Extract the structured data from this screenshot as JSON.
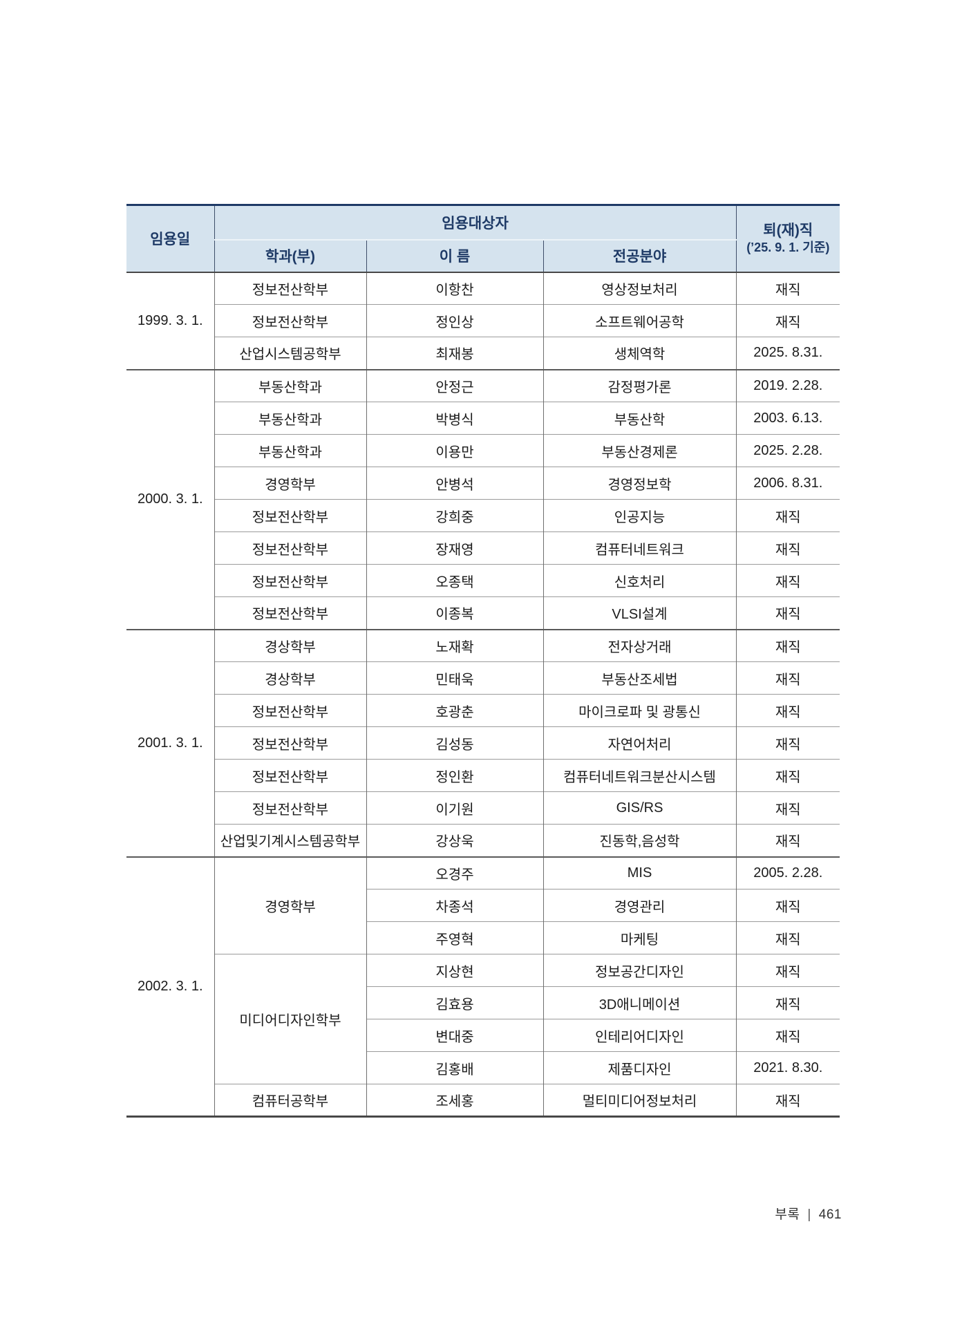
{
  "page": {
    "footer": {
      "section": "부록",
      "separator": "|",
      "page_number": "461"
    }
  },
  "colors": {
    "header_bg": "#d5e3ee",
    "header_text": "#1e3a66",
    "top_border": "#1e3a66"
  },
  "table": {
    "header": {
      "col_date": "임용일",
      "col_group": "임용대상자",
      "col_dept": "학과(부)",
      "col_name": "이 름",
      "col_major": "전공분야",
      "col_status_line1": "퇴(재)직",
      "col_status_line2": "(’25. 9. 1. 기준)"
    },
    "groups": [
      {
        "date": "1999. 3. 1.",
        "rows": [
          {
            "dept": "정보전산학부",
            "dept_span": 1,
            "name": "이항찬",
            "major": "영상정보처리",
            "status": "재직"
          },
          {
            "dept": "정보전산학부",
            "dept_span": 1,
            "name": "정인상",
            "major": "소프트웨어공학",
            "status": "재직"
          },
          {
            "dept": "산업시스템공학부",
            "dept_span": 1,
            "name": "최재봉",
            "major": "생체역학",
            "status": "2025. 8.31."
          }
        ]
      },
      {
        "date": "2000. 3. 1.",
        "rows": [
          {
            "dept": "부동산학과",
            "dept_span": 1,
            "name": "안정근",
            "major": "감정평가론",
            "status": "2019. 2.28."
          },
          {
            "dept": "부동산학과",
            "dept_span": 1,
            "name": "박병식",
            "major": "부동산학",
            "status": "2003. 6.13."
          },
          {
            "dept": "부동산학과",
            "dept_span": 1,
            "name": "이용만",
            "major": "부동산경제론",
            "status": "2025. 2.28."
          },
          {
            "dept": "경영학부",
            "dept_span": 1,
            "name": "안병석",
            "major": "경영정보학",
            "status": "2006. 8.31."
          },
          {
            "dept": "정보전산학부",
            "dept_span": 1,
            "name": "강희중",
            "major": "인공지능",
            "status": "재직"
          },
          {
            "dept": "정보전산학부",
            "dept_span": 1,
            "name": "장재영",
            "major": "컴퓨터네트워크",
            "status": "재직"
          },
          {
            "dept": "정보전산학부",
            "dept_span": 1,
            "name": "오종택",
            "major": "신호처리",
            "status": "재직"
          },
          {
            "dept": "정보전산학부",
            "dept_span": 1,
            "name": "이종복",
            "major": "VLSI설계",
            "status": "재직"
          }
        ]
      },
      {
        "date": "2001. 3. 1.",
        "rows": [
          {
            "dept": "경상학부",
            "dept_span": 1,
            "name": "노재확",
            "major": "전자상거래",
            "status": "재직"
          },
          {
            "dept": "경상학부",
            "dept_span": 1,
            "name": "민태욱",
            "major": "부동산조세법",
            "status": "재직"
          },
          {
            "dept": "정보전산학부",
            "dept_span": 1,
            "name": "호광춘",
            "major": "마이크로파 및 광통신",
            "status": "재직"
          },
          {
            "dept": "정보전산학부",
            "dept_span": 1,
            "name": "김성동",
            "major": "자연어처리",
            "status": "재직"
          },
          {
            "dept": "정보전산학부",
            "dept_span": 1,
            "name": "정인환",
            "major": "컴퓨터네트워크분산시스템",
            "status": "재직"
          },
          {
            "dept": "정보전산학부",
            "dept_span": 1,
            "name": "이기원",
            "major": "GIS/RS",
            "status": "재직"
          },
          {
            "dept": "산업및기계시스템공학부",
            "dept_span": 1,
            "name": "강상욱",
            "major": "진동학,음성학",
            "status": "재직"
          }
        ]
      },
      {
        "date": "2002. 3. 1.",
        "rows": [
          {
            "dept": "경영학부",
            "dept_span": 3,
            "name": "오경주",
            "major": "MIS",
            "status": "2005. 2.28."
          },
          {
            "dept": null,
            "name": "차종석",
            "major": "경영관리",
            "status": "재직"
          },
          {
            "dept": null,
            "name": "주영혁",
            "major": "마케팅",
            "status": "재직"
          },
          {
            "dept": "미디어디자인학부",
            "dept_span": 4,
            "name": "지상현",
            "major": "정보공간디자인",
            "status": "재직"
          },
          {
            "dept": null,
            "name": "김효용",
            "major": "3D애니메이션",
            "status": "재직"
          },
          {
            "dept": null,
            "name": "변대중",
            "major": "인테리어디자인",
            "status": "재직"
          },
          {
            "dept": null,
            "name": "김홍배",
            "major": "제품디자인",
            "status": "2021. 8.30."
          },
          {
            "dept": "컴퓨터공학부",
            "dept_span": 1,
            "name": "조세홍",
            "major": "멀티미디어정보처리",
            "status": "재직"
          }
        ]
      }
    ]
  }
}
